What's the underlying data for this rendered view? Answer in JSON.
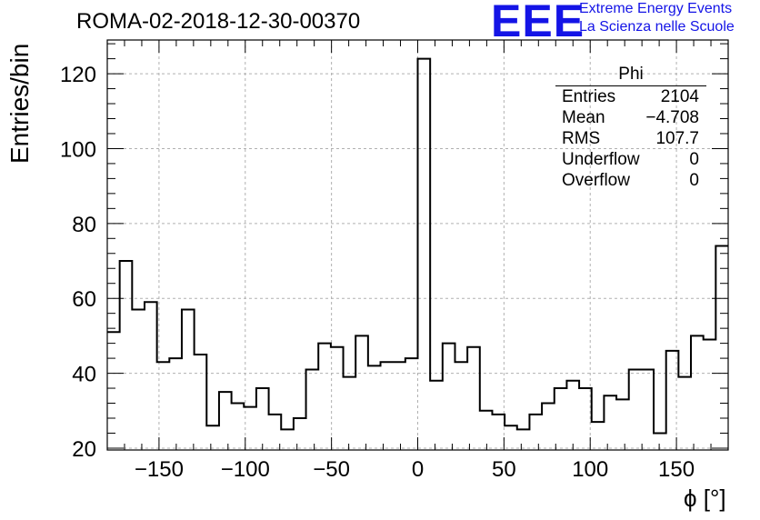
{
  "title": "ROMA-02-2018-12-30-00370",
  "logo": {
    "text": "EEE",
    "line1": "Extreme Energy Events",
    "line2": "La Scienza nelle Scuole",
    "color": "#1414e6"
  },
  "stats_box": {
    "name": "Phi",
    "rows": [
      {
        "label": "Entries",
        "value": "2104"
      },
      {
        "label": "Mean",
        "value": "−4.708"
      },
      {
        "label": "RMS",
        "value": "107.7"
      },
      {
        "label": "Underflow",
        "value": "0"
      },
      {
        "label": "Overflow",
        "value": "0"
      }
    ]
  },
  "chart_data": {
    "type": "histogram",
    "title": "ROMA-02-2018-12-30-00370",
    "xlabel": "ϕ [°]",
    "ylabel": "Entries/bin",
    "xlim": [
      -180,
      180
    ],
    "ylim": [
      19.5,
      129
    ],
    "bin_width": 7.2,
    "xticks": [
      -150,
      -100,
      -50,
      0,
      50,
      100,
      150
    ],
    "yticks": [
      20,
      40,
      60,
      80,
      100,
      120
    ],
    "grid": true,
    "values": [
      51,
      70,
      57,
      59,
      43,
      44,
      57,
      45,
      26,
      35,
      32,
      31,
      36,
      29,
      25,
      28,
      41,
      48,
      47,
      39,
      50,
      42,
      43,
      43,
      44,
      124,
      38,
      48,
      43,
      47,
      30,
      29,
      26,
      25,
      29,
      32,
      36,
      38,
      36,
      27,
      34,
      33,
      41,
      41,
      24,
      46,
      39,
      50,
      49,
      74
    ]
  }
}
